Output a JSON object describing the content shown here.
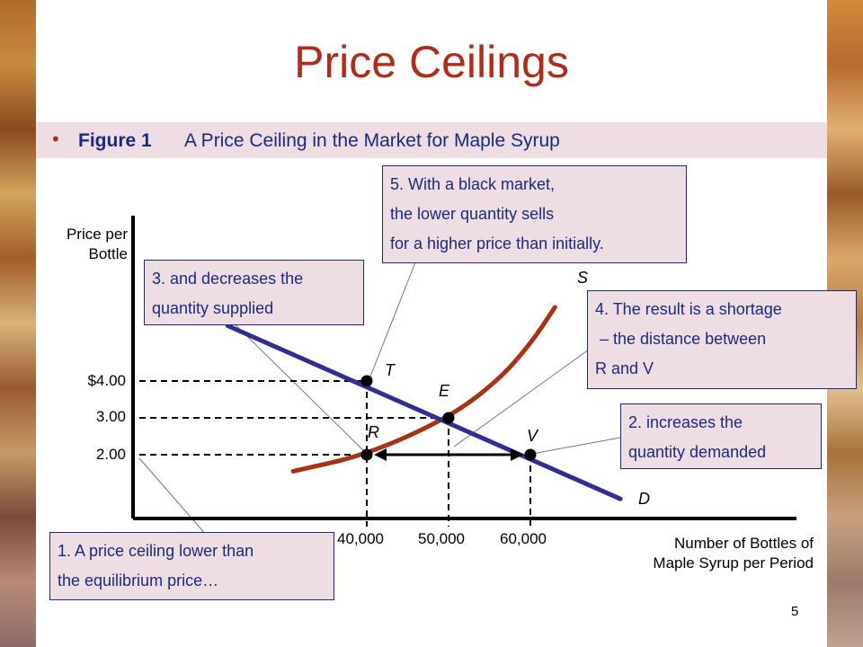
{
  "slide": {
    "title": "Price Ceilings",
    "bullet": "•",
    "figure_number": "Figure 1",
    "figure_caption": "A Price Ceiling in the Market for Maple Syrup",
    "page_number": "5",
    "colors": {
      "title": "#b22a18",
      "text": "#1a2a80",
      "note_bg": "#eedde3",
      "supply": "#a83214",
      "demand": "#2e2e96"
    }
  },
  "chart_data": {
    "type": "line",
    "title": "A Price Ceiling in the Market for Maple Syrup",
    "ylabel_line1": "Price per",
    "ylabel_line2": "Bottle",
    "xlabel_line1": "Number of Bottles  of",
    "xlabel_line2": "Maple Syrup per Period",
    "y_ticks": [
      {
        "value": 4.0,
        "label": "$4.00"
      },
      {
        "value": 3.0,
        "label": "3.00"
      },
      {
        "value": 2.0,
        "label": "2.00"
      }
    ],
    "x_ticks": [
      {
        "value": 40000,
        "label": "40,000"
      },
      {
        "value": 50000,
        "label": "50,000"
      },
      {
        "value": 60000,
        "label": "60,000"
      }
    ],
    "series": [
      {
        "name": "S",
        "curve": "supply",
        "points": [
          [
            31000,
            1.55
          ],
          [
            40000,
            2.0
          ],
          [
            50000,
            3.0
          ],
          [
            56000,
            4.0
          ],
          [
            60000,
            5.0
          ],
          [
            63000,
            6.0
          ]
        ]
      },
      {
        "name": "D",
        "curve": "demand",
        "points": [
          [
            23000,
            5.5
          ],
          [
            40000,
            4.0
          ],
          [
            50000,
            3.0
          ],
          [
            60000,
            2.0
          ],
          [
            71000,
            0.8
          ]
        ]
      }
    ],
    "points": [
      {
        "name": "T",
        "x": 40000,
        "y": 4.0
      },
      {
        "name": "E",
        "x": 50000,
        "y": 3.0
      },
      {
        "name": "R",
        "x": 40000,
        "y": 2.0
      },
      {
        "name": "V",
        "x": 60000,
        "y": 2.0
      }
    ],
    "shortage": {
      "from": 40000,
      "to": 60000,
      "price": 2.0
    }
  },
  "notes": {
    "n1": "1. A price ceiling lower than\nthe equilibrium price…",
    "n2": "2. increases the\nquantity demanded",
    "n3": "3. and decreases the\nquantity supplied",
    "n4": "4. The result is a shortage\n – the distance between\nR and V",
    "n5": "5. With a black market,\nthe lower quantity sells\nfor a higher price than initially."
  }
}
